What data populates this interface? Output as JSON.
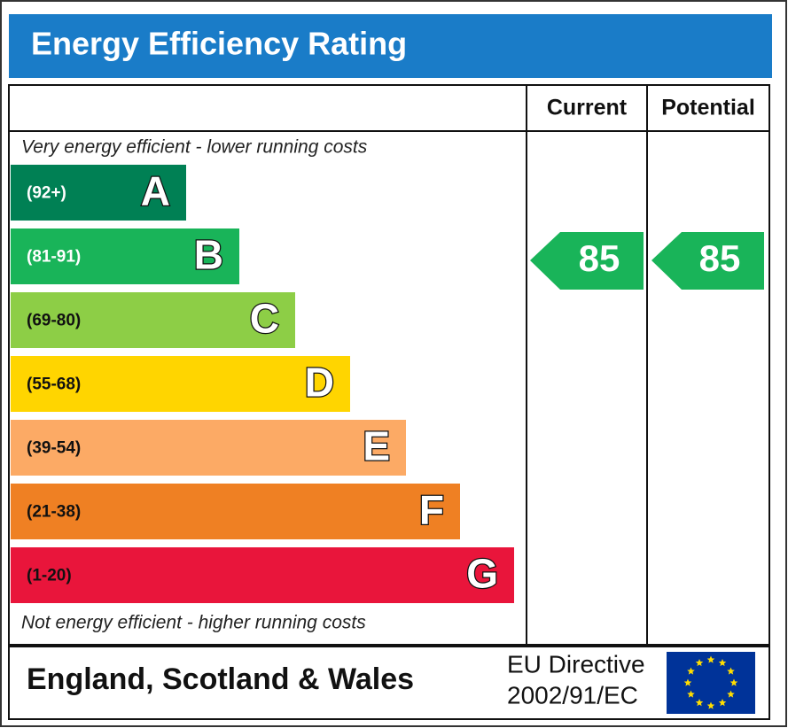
{
  "title": "Energy Efficiency Rating",
  "columns": {
    "current": "Current",
    "potential": "Potential"
  },
  "top_note": "Very energy efficient - lower running costs",
  "bands": [
    {
      "range": "(92+)",
      "letter": "A",
      "color": "#008054"
    },
    {
      "range": "(81-91)",
      "letter": "B",
      "color": "#19b459"
    },
    {
      "range": "(69-80)",
      "letter": "C",
      "color": "#8dce46"
    },
    {
      "range": "(55-68)",
      "letter": "D",
      "color": "#ffd500"
    },
    {
      "range": "(39-54)",
      "letter": "E",
      "color": "#fcaa65"
    },
    {
      "range": "(21-38)",
      "letter": "F",
      "color": "#ef8023"
    },
    {
      "range": "(1-20)",
      "letter": "G",
      "color": "#e9153b"
    }
  ],
  "bottom_note": "Not energy efficient - higher running costs",
  "current": {
    "value": 85
  },
  "potential": {
    "value": 85
  },
  "footer": {
    "region": "England, Scotland & Wales",
    "directive": [
      "EU Directive",
      "2002/91/EC"
    ]
  }
}
